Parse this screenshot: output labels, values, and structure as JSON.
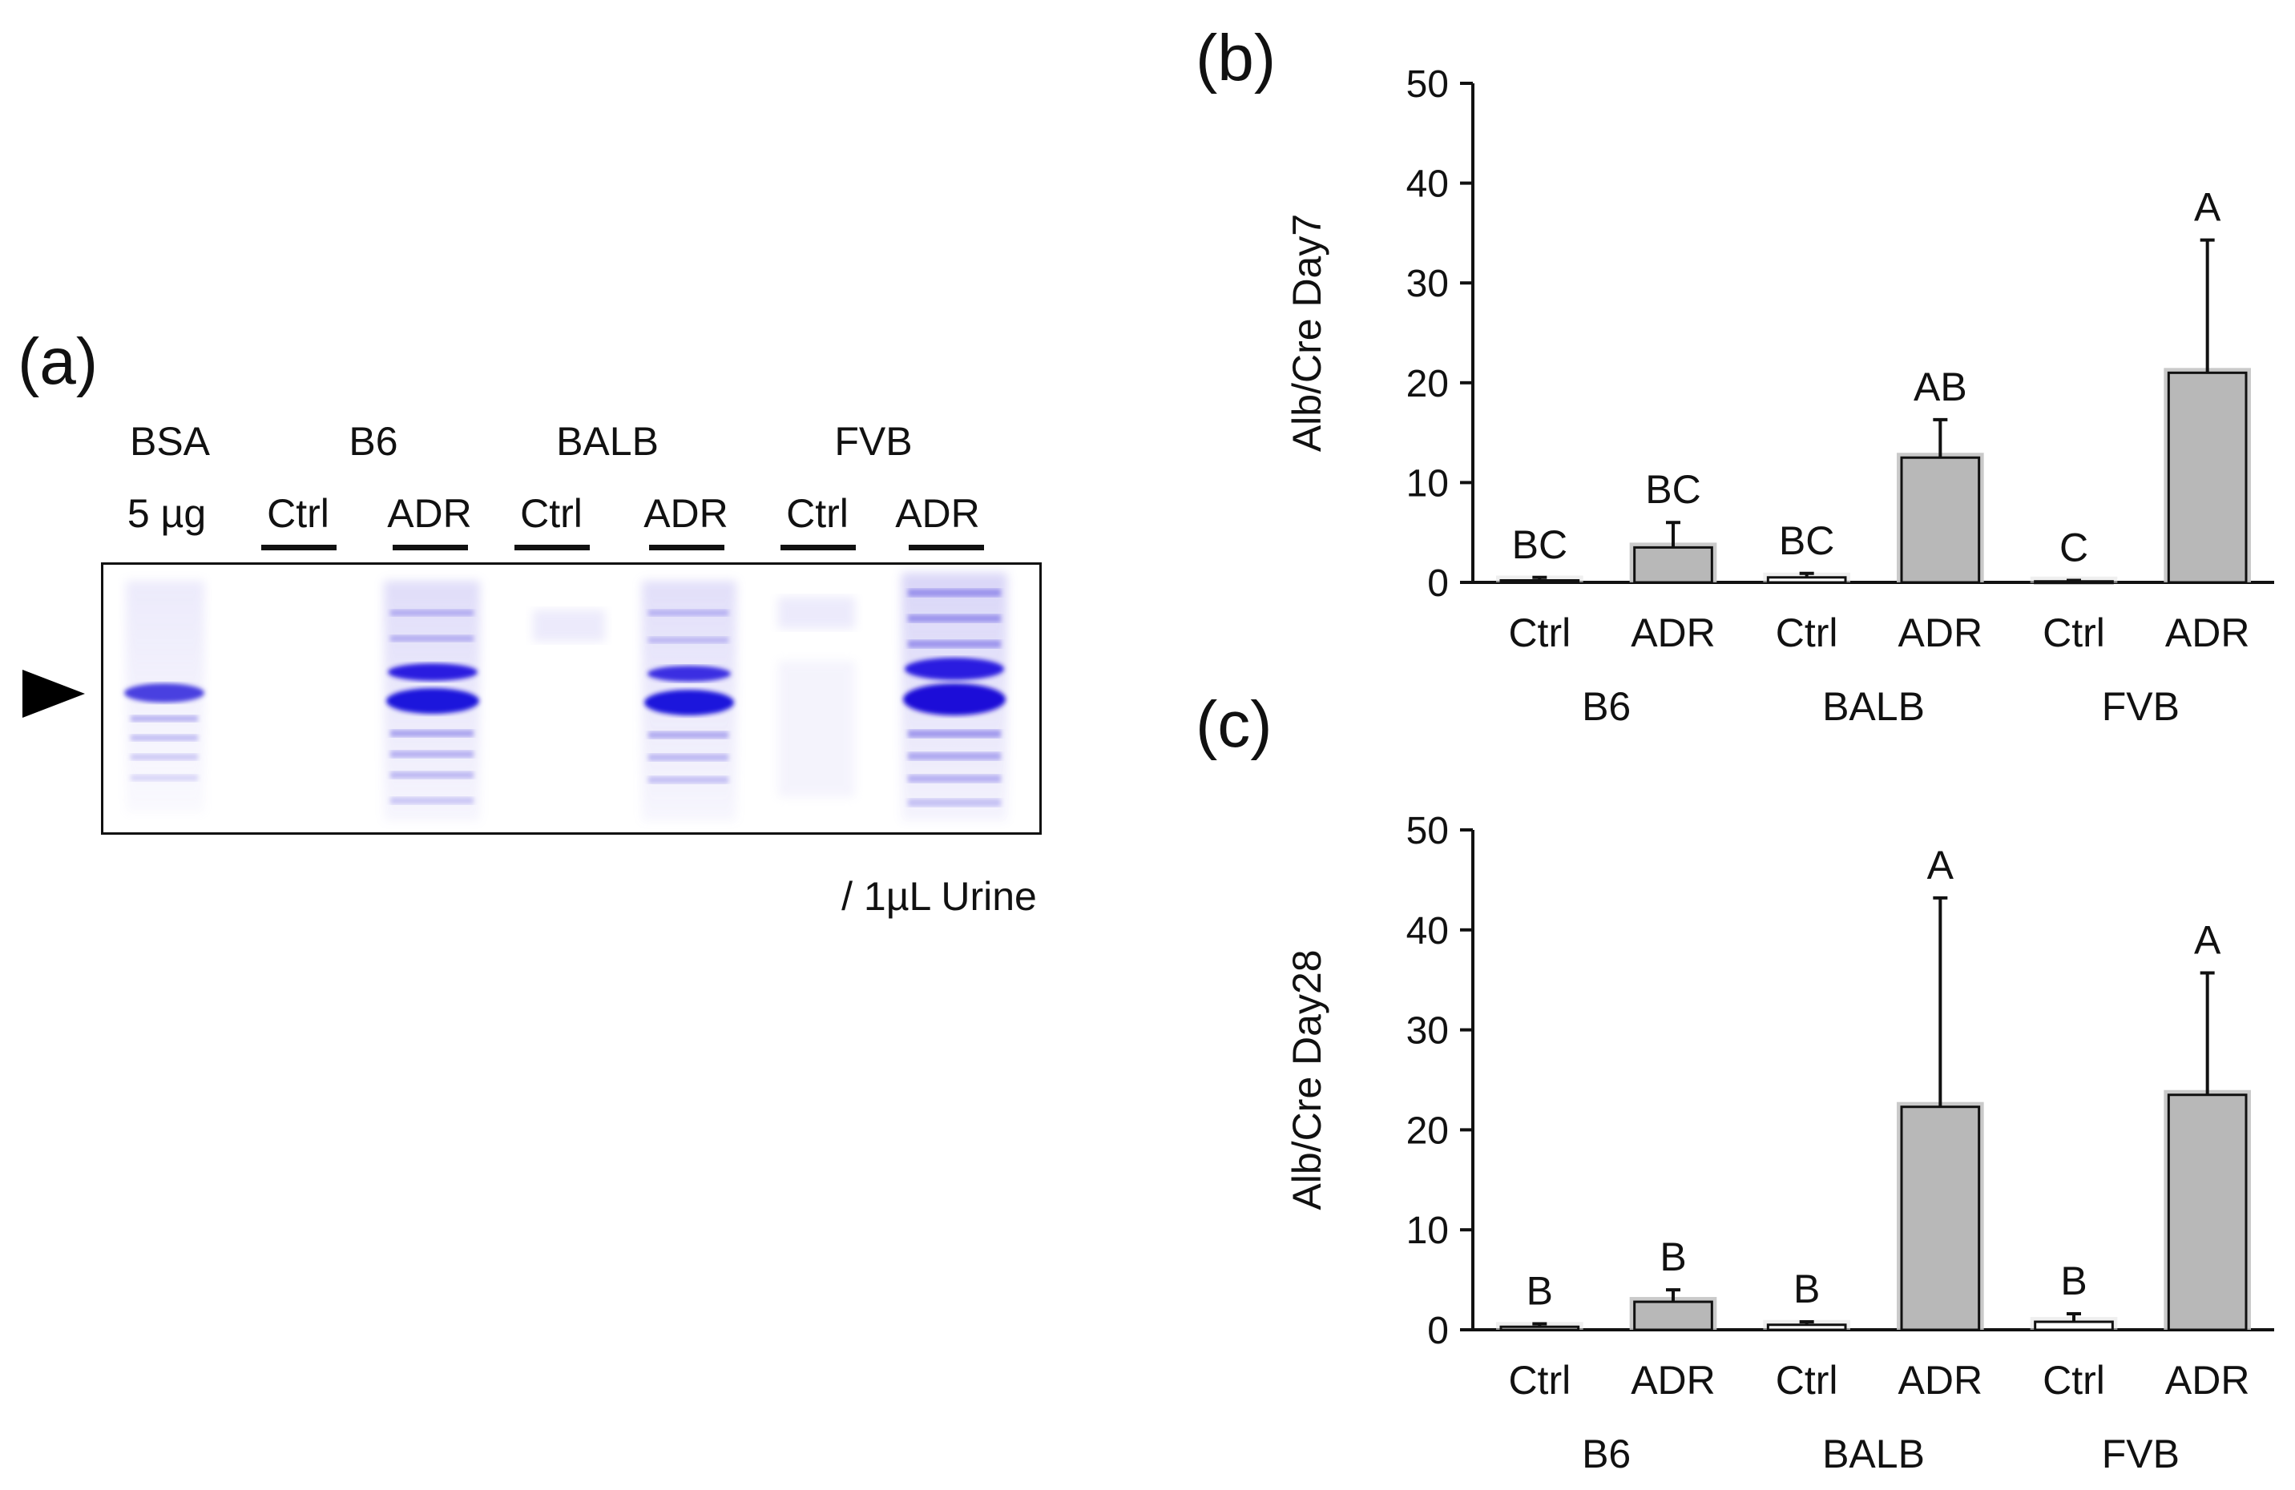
{
  "panel_a": {
    "letter": "(a)",
    "groups": [
      "BSA",
      "B6",
      "BALB",
      "FVB"
    ],
    "lanes": [
      "5 µg",
      "Ctrl",
      "ADR",
      "Ctrl",
      "ADR",
      "Ctrl",
      "ADR"
    ],
    "footnote": "/ 1µL Urine"
  },
  "chart_data": [
    {
      "type": "bar",
      "panel": "(b)",
      "ylabel": "Alb/Cre Day7",
      "ylim": [
        0,
        50
      ],
      "yticks": [
        0,
        10,
        20,
        30,
        40,
        50
      ],
      "categories": [
        "Ctrl",
        "ADR",
        "Ctrl",
        "ADR",
        "Ctrl",
        "ADR"
      ],
      "groups": [
        "B6",
        "BALB",
        "FVB"
      ],
      "values": [
        0.2,
        3.5,
        0.5,
        12.5,
        0.1,
        21.0
      ],
      "errors": [
        0.3,
        2.5,
        0.4,
        3.8,
        0.1,
        13.3
      ],
      "letters": [
        "BC",
        "BC",
        "BC",
        "AB",
        "C",
        "A"
      ]
    },
    {
      "type": "bar",
      "panel": "(c)",
      "ylabel": "Alb/Cre Day28",
      "ylim": [
        0,
        50
      ],
      "yticks": [
        0,
        10,
        20,
        30,
        40,
        50
      ],
      "categories": [
        "Ctrl",
        "ADR",
        "Ctrl",
        "ADR",
        "Ctrl",
        "ADR"
      ],
      "groups": [
        "B6",
        "BALB",
        "FVB"
      ],
      "values": [
        0.3,
        2.8,
        0.5,
        22.3,
        0.8,
        23.5
      ],
      "errors": [
        0.3,
        1.2,
        0.3,
        20.9,
        0.8,
        12.2
      ],
      "letters": [
        "B",
        "B",
        "B",
        "A",
        "B",
        "A"
      ]
    }
  ],
  "colors": {
    "axis": "#111111",
    "bar_fill": "#b8b8b8",
    "gel_band": "#2a1ee0",
    "gel_smear": "#8f86ea"
  }
}
